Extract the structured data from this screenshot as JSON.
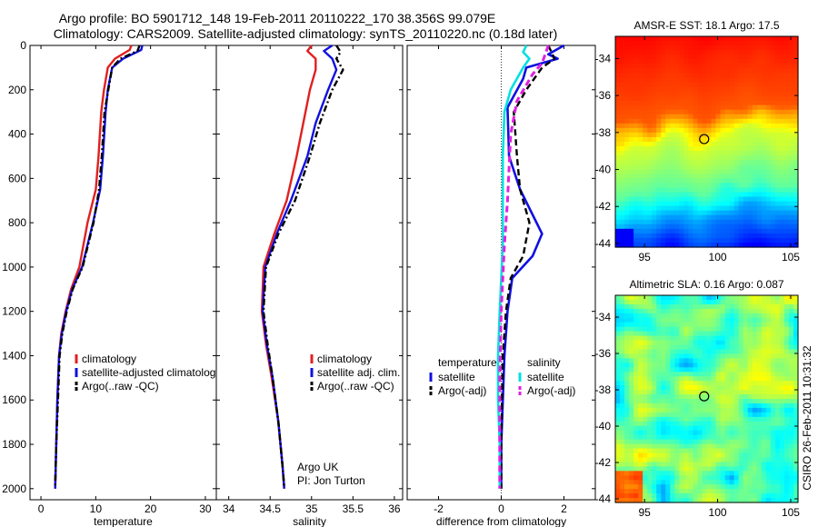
{
  "header": {
    "title_line1": "Argo profile: BO 5901712_148 19-Feb-2011 20110222_170 38.356S 99.079E",
    "title_line2": "Climatology: CARS2009. Satellite-adjusted climatology: synTS_20110220.nc (0.18d later)"
  },
  "credits": {
    "line1": "Argo UK",
    "line2": "PI: Jon Turton",
    "stamp": "CSIRO 26-Feb-2011 10:31:32"
  },
  "colors": {
    "climatology": "#e02020",
    "satellite": "#1010e0",
    "argo": "#000000",
    "satellite_salinity": "#00e0e0",
    "argo_salinity": "#e020e0"
  },
  "chart_data": [
    {
      "type": "line",
      "xlabel": "temperature",
      "xlim": [
        -2,
        32
      ],
      "xticks": [
        0,
        10,
        20,
        30
      ],
      "ylim": [
        2050,
        0
      ],
      "yticks": [
        0,
        200,
        400,
        600,
        800,
        1000,
        1200,
        1400,
        1600,
        1800,
        2000
      ],
      "legend_placement": "lower-right",
      "series": [
        {
          "name": "climatology",
          "color": "#e02020",
          "style": "solid",
          "points": [
            [
              16.5,
              0
            ],
            [
              16.2,
              20
            ],
            [
              13.5,
              60
            ],
            [
              12.2,
              100
            ],
            [
              11.5,
              200
            ],
            [
              11,
              300
            ],
            [
              10.5,
              500
            ],
            [
              10,
              650
            ],
            [
              8.5,
              800
            ],
            [
              7,
              1000
            ],
            [
              5.5,
              1100
            ],
            [
              4.5,
              1200
            ],
            [
              3.7,
              1300
            ],
            [
              3.3,
              1400
            ],
            [
              3,
              1600
            ],
            [
              2.8,
              1800
            ],
            [
              2.6,
              2000
            ]
          ]
        },
        {
          "name": "satellite-adjusted climatology",
          "color": "#1010e0",
          "style": "solid",
          "points": [
            [
              18.5,
              0
            ],
            [
              18.3,
              20
            ],
            [
              15,
              60
            ],
            [
              13,
              100
            ],
            [
              12.2,
              200
            ],
            [
              11.8,
              300
            ],
            [
              11.3,
              500
            ],
            [
              10.8,
              650
            ],
            [
              9.5,
              800
            ],
            [
              7.5,
              1000
            ],
            [
              5.7,
              1100
            ],
            [
              4.6,
              1200
            ],
            [
              3.8,
              1300
            ],
            [
              3.3,
              1400
            ],
            [
              3,
              1600
            ],
            [
              2.8,
              1800
            ],
            [
              2.6,
              2000
            ]
          ]
        },
        {
          "name": "Argo(..raw -QC)",
          "color": "#000000",
          "style": "dashdot",
          "points": [
            [
              18,
              0
            ],
            [
              17.6,
              25
            ],
            [
              14.5,
              60
            ],
            [
              13,
              100
            ],
            [
              12.3,
              200
            ],
            [
              11.6,
              300
            ],
            [
              11.1,
              500
            ],
            [
              10.6,
              650
            ],
            [
              9.6,
              800
            ],
            [
              7.6,
              1000
            ],
            [
              5.8,
              1100
            ],
            [
              4.7,
              1200
            ],
            [
              3.9,
              1300
            ],
            [
              3.4,
              1400
            ],
            [
              3.1,
              1600
            ],
            [
              2.8,
              1800
            ],
            [
              2.6,
              1990
            ]
          ]
        }
      ]
    },
    {
      "type": "line",
      "xlabel": "salinity",
      "xlim": [
        33.85,
        36.1
      ],
      "xticks": [
        34,
        34.5,
        35,
        35.5,
        36
      ],
      "ylim": [
        2050,
        0
      ],
      "yticks": [
        0,
        200,
        400,
        600,
        800,
        1000,
        1200,
        1400,
        1600,
        1800,
        2000
      ],
      "legend_placement": "lower-right",
      "series": [
        {
          "name": "climatology",
          "color": "#e02020",
          "style": "solid",
          "points": [
            [
              35,
              0
            ],
            [
              34.95,
              25
            ],
            [
              35.05,
              60
            ],
            [
              35.05,
              110
            ],
            [
              34.98,
              200
            ],
            [
              34.9,
              350
            ],
            [
              34.82,
              500
            ],
            [
              34.7,
              700
            ],
            [
              34.55,
              850
            ],
            [
              34.42,
              1000
            ],
            [
              34.4,
              1200
            ],
            [
              34.45,
              1350
            ],
            [
              34.52,
              1500
            ],
            [
              34.6,
              1700
            ],
            [
              34.65,
              1900
            ],
            [
              34.67,
              2000
            ]
          ]
        },
        {
          "name": "satellite adj. clim.",
          "color": "#1010e0",
          "style": "solid",
          "points": [
            [
              35.25,
              0
            ],
            [
              35.15,
              25
            ],
            [
              35.25,
              60
            ],
            [
              35.3,
              110
            ],
            [
              35.2,
              200
            ],
            [
              35.05,
              350
            ],
            [
              34.95,
              500
            ],
            [
              34.75,
              700
            ],
            [
              34.58,
              850
            ],
            [
              34.44,
              1000
            ],
            [
              34.41,
              1200
            ],
            [
              34.46,
              1350
            ],
            [
              34.53,
              1500
            ],
            [
              34.6,
              1700
            ],
            [
              34.65,
              1900
            ],
            [
              34.67,
              2000
            ]
          ]
        },
        {
          "name": "Argo(..raw -QC)",
          "color": "#000000",
          "style": "dashdot",
          "points": [
            [
              35.3,
              0
            ],
            [
              35.35,
              30
            ],
            [
              35.3,
              60
            ],
            [
              35.38,
              110
            ],
            [
              35.25,
              200
            ],
            [
              35.1,
              350
            ],
            [
              34.98,
              500
            ],
            [
              34.8,
              700
            ],
            [
              34.6,
              850
            ],
            [
              34.45,
              1000
            ],
            [
              34.42,
              1200
            ],
            [
              34.47,
              1350
            ],
            [
              34.53,
              1500
            ],
            [
              34.6,
              1700
            ],
            [
              34.65,
              1900
            ],
            [
              34.67,
              1990
            ]
          ]
        }
      ]
    },
    {
      "type": "line",
      "xlabel": "difference from climatology",
      "xlim": [
        -3,
        3
      ],
      "xticks": [
        -2,
        0,
        2
      ],
      "ylim": [
        2050,
        0
      ],
      "yticks": [
        0,
        200,
        400,
        600,
        800,
        1000,
        1200,
        1400,
        1600,
        1800,
        2000
      ],
      "legend_placement": "lower-right",
      "legend_groups": [
        "temperature",
        "salinity"
      ],
      "series": [
        {
          "name": "satellite",
          "group": "temperature",
          "color": "#1010e0",
          "style": "solid",
          "width": 2.6,
          "points": [
            [
              2,
              0
            ],
            [
              1.5,
              40
            ],
            [
              1.8,
              60
            ],
            [
              0.8,
              100
            ],
            [
              0.7,
              150
            ],
            [
              0.2,
              280
            ],
            [
              0.25,
              500
            ],
            [
              0.6,
              650
            ],
            [
              1.3,
              850
            ],
            [
              1,
              950
            ],
            [
              0.35,
              1050
            ],
            [
              0.2,
              1200
            ],
            [
              0.1,
              1400
            ],
            [
              0,
              1800
            ],
            [
              0,
              2000
            ]
          ]
        },
        {
          "name": "Argo(-adj)",
          "group": "temperature",
          "color": "#000000",
          "style": "dashed",
          "width": 2.4,
          "points": [
            [
              1.5,
              0
            ],
            [
              1.7,
              60
            ],
            [
              1.3,
              100
            ],
            [
              0.8,
              200
            ],
            [
              0.4,
              300
            ],
            [
              0.5,
              500
            ],
            [
              0.6,
              650
            ],
            [
              0.9,
              800
            ],
            [
              0.7,
              950
            ],
            [
              0.3,
              1050
            ],
            [
              0.15,
              1200
            ],
            [
              0.05,
              1400
            ],
            [
              0,
              1800
            ],
            [
              0,
              2000
            ]
          ]
        },
        {
          "name": "satellite",
          "group": "salinity",
          "color": "#00e0e0",
          "style": "solid",
          "width": 2.6,
          "points": [
            [
              0.8,
              0
            ],
            [
              0.7,
              30
            ],
            [
              0.9,
              60
            ],
            [
              0.7,
              100
            ],
            [
              0.3,
              200
            ],
            [
              0.1,
              300
            ],
            [
              0.05,
              500
            ],
            [
              0.05,
              650
            ],
            [
              0.05,
              900
            ],
            [
              -0.05,
              1200
            ],
            [
              -0.1,
              1400
            ],
            [
              -0.1,
              1600
            ],
            [
              -0.05,
              1800
            ],
            [
              -0.05,
              2000
            ]
          ]
        },
        {
          "name": "Argo(-adj)",
          "group": "salinity",
          "color": "#e020e0",
          "style": "dashed",
          "width": 3,
          "points": [
            [
              1.5,
              0
            ],
            [
              1.3,
              80
            ],
            [
              1,
              130
            ],
            [
              0.5,
              250
            ],
            [
              0.3,
              400
            ],
            [
              0.2,
              700
            ],
            [
              0.1,
              900
            ],
            [
              0,
              1200
            ],
            [
              -0.05,
              1500
            ],
            [
              -0.05,
              1800
            ],
            [
              -0.05,
              2000
            ]
          ]
        }
      ]
    },
    {
      "type": "heatmap",
      "title": "AMSR-E SST: 18.1 Argo: 17.5",
      "xlim": [
        93,
        105.5
      ],
      "ylim": [
        -44.2,
        -32.8
      ],
      "xticks": [
        95,
        100,
        105
      ],
      "yticks": [
        -34,
        -36,
        -38,
        -40,
        -42,
        -44
      ],
      "marker": [
        99.079,
        -38.356
      ],
      "colormap": "jet",
      "sst_zones_degC": [
        [
          -32.8,
          19
        ],
        [
          -37.5,
          18
        ],
        [
          -40,
          16
        ],
        [
          -42,
          14
        ],
        [
          -44.2,
          12
        ]
      ]
    },
    {
      "type": "heatmap",
      "title": "Altimetric SLA: 0.16 Argo: 0.087",
      "xlim": [
        93,
        105.5
      ],
      "ylim": [
        -44.2,
        -32.8
      ],
      "xticks": [
        95,
        100,
        105
      ],
      "yticks": [
        -34,
        -36,
        -38,
        -40,
        -42,
        -44
      ],
      "marker": [
        99.079,
        -38.356
      ],
      "colormap": "jet"
    }
  ]
}
